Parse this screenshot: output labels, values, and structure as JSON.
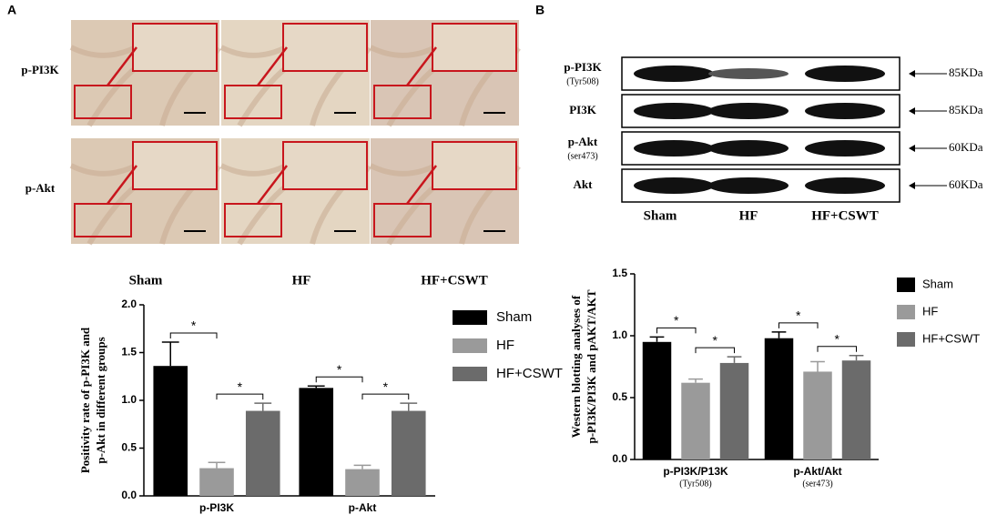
{
  "panel_labels": [
    "A",
    "B"
  ],
  "ihc": {
    "rows": [
      "p-PI3K",
      "p-Akt"
    ],
    "columns": [
      "Sham",
      "HF",
      "HF+CSWT"
    ]
  },
  "western": {
    "bands": [
      {
        "label": "p-PI3K",
        "sublabel": "(Tyr508)",
        "size": "85KDa"
      },
      {
        "label": "PI3K",
        "size": "85KDa"
      },
      {
        "label": "p-Akt",
        "sublabel": "(ser473)",
        "size": "60KDa"
      },
      {
        "label": "Akt",
        "size": "60KDa"
      }
    ],
    "lanes": [
      "Sham",
      "HF",
      "HF+CSWT"
    ]
  },
  "chart_data": [
    {
      "type": "bar",
      "ylabel": [
        "Positivity rate of  p-PI3K and",
        "p-Akt in different groups"
      ],
      "categories": [
        "p-PI3K",
        "p-Akt"
      ],
      "series": [
        {
          "name": "Sham",
          "color": "#000000",
          "values": [
            1.36,
            1.13
          ],
          "errors": [
            0.25,
            0.02
          ]
        },
        {
          "name": "HF",
          "color": "#9a9a9a",
          "values": [
            0.29,
            0.28
          ],
          "errors": [
            0.06,
            0.04
          ]
        },
        {
          "name": "HF+CSWT",
          "color": "#6b6b6b",
          "values": [
            0.89,
            0.89
          ],
          "errors": [
            0.08,
            0.08
          ]
        }
      ],
      "ylim": [
        0,
        2
      ],
      "yticks": [
        {
          "value": 0,
          "label": "0.0"
        },
        0.5,
        {
          "value": 1,
          "label": "1.0"
        },
        1.5,
        {
          "value": 2,
          "label": "2.0"
        }
      ],
      "annotations": [
        {
          "label": "*",
          "category": "p-PI3K",
          "between": [
            "Sham",
            "HF"
          ]
        },
        {
          "label": "*",
          "category": "p-PI3K",
          "between": [
            "HF",
            "HF+CSWT"
          ]
        },
        {
          "label": "*",
          "category": "p-Akt",
          "between": [
            "Sham",
            "HF"
          ]
        },
        {
          "label": "*",
          "category": "p-Akt",
          "between": [
            "HF",
            "HF+CSWT"
          ]
        }
      ]
    },
    {
      "type": "bar",
      "ylabel": [
        "Western blotting analyses of",
        "p-PI3K/PI3K and pAKT/AKT"
      ],
      "categories": [
        "p-PI3K/P13K",
        "p-Akt/Akt"
      ],
      "category_sublabels": [
        "(Tyr508)",
        "(ser473)"
      ],
      "series": [
        {
          "name": "Sham",
          "color": "#000000",
          "values": [
            0.95,
            0.98
          ],
          "errors": [
            0.04,
            0.05
          ]
        },
        {
          "name": "HF",
          "color": "#9a9a9a",
          "values": [
            0.62,
            0.71
          ],
          "errors": [
            0.03,
            0.08
          ]
        },
        {
          "name": "HF+CSWT",
          "color": "#6b6b6b",
          "values": [
            0.78,
            0.8
          ],
          "errors": [
            0.05,
            0.04
          ]
        }
      ],
      "ylim": [
        0,
        1.5
      ],
      "yticks": [
        {
          "value": 0,
          "label": "0.0"
        },
        0.5,
        {
          "value": 1,
          "label": "1.0"
        },
        1.5
      ],
      "annotations": [
        {
          "label": "*",
          "category": "p-PI3K/P13K",
          "between": [
            "Sham",
            "HF"
          ]
        },
        {
          "label": "*",
          "category": "p-PI3K/P13K",
          "between": [
            "HF",
            "HF+CSWT"
          ]
        },
        {
          "label": "*",
          "category": "p-Akt/Akt",
          "between": [
            "Sham",
            "HF"
          ]
        },
        {
          "label": "*",
          "category": "p-Akt/Akt",
          "between": [
            "HF",
            "HF+CSWT"
          ]
        }
      ]
    }
  ]
}
